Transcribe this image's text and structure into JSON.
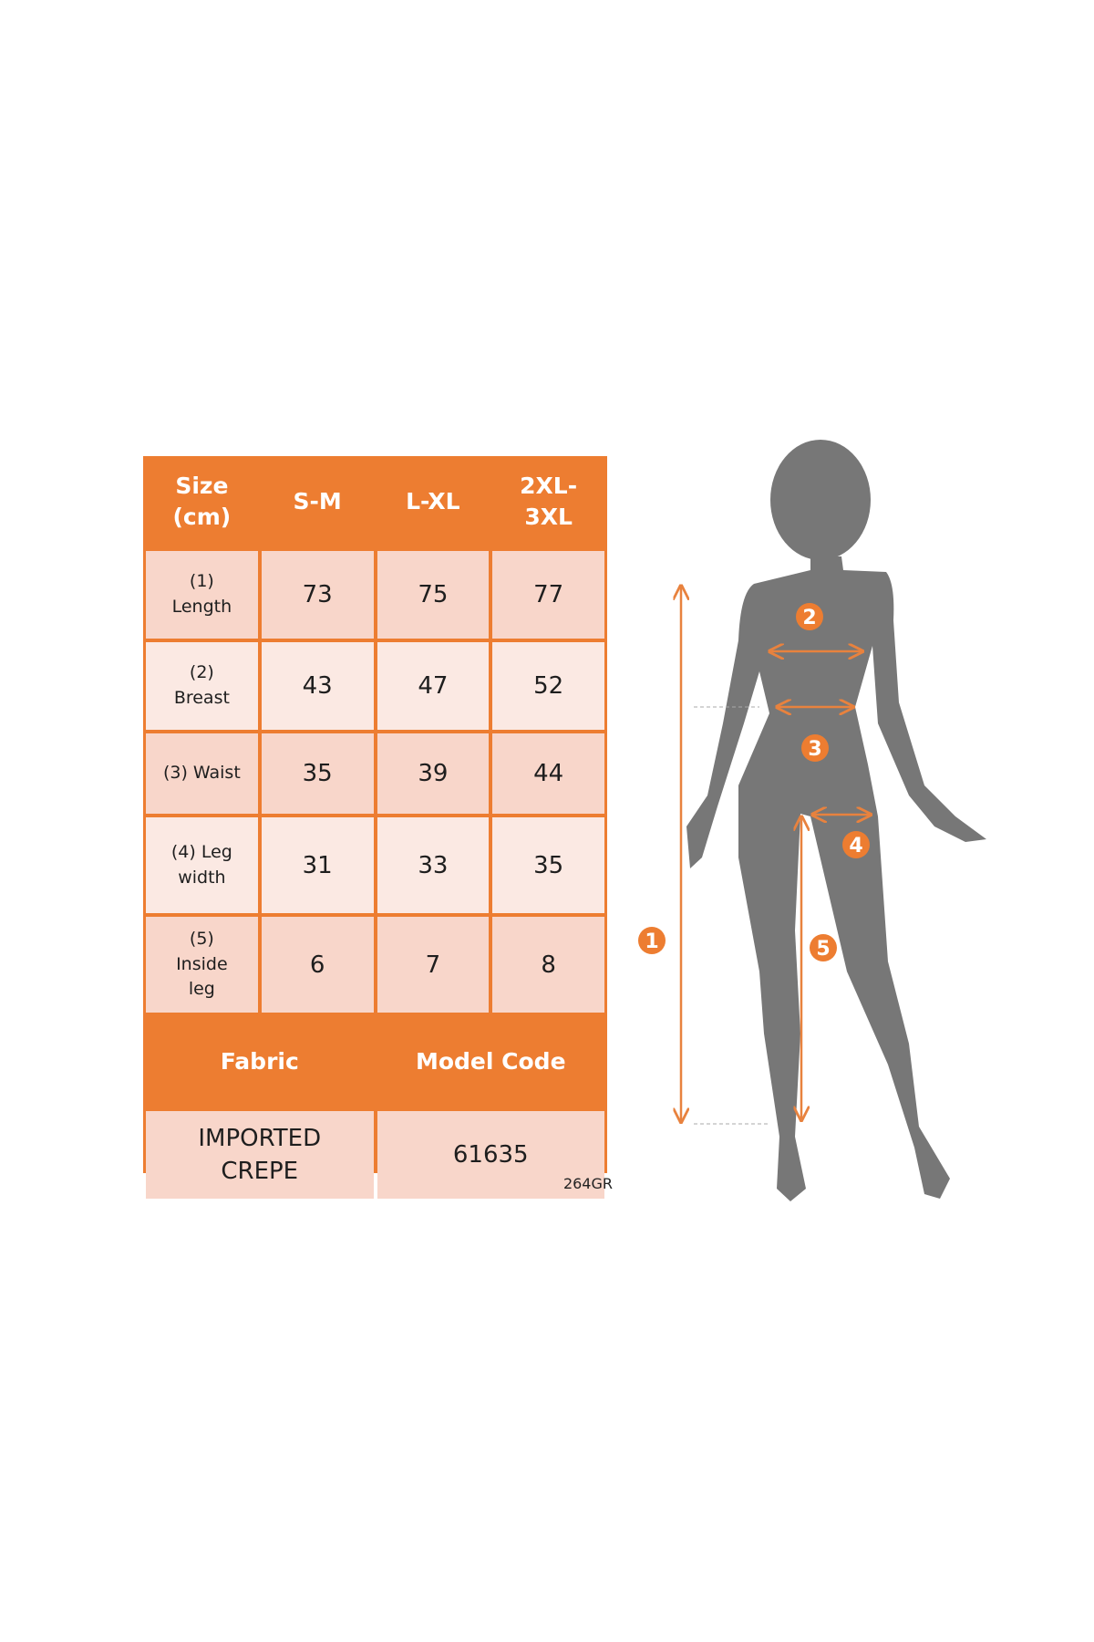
{
  "table": {
    "header": [
      "Size\n(cm)",
      "S-M",
      "L-XL",
      "2XL-\n3XL"
    ],
    "rows": [
      {
        "label": "(1)\nLength",
        "values": [
          "73",
          "75",
          "77"
        ]
      },
      {
        "label": "(2)\nBreast",
        "values": [
          "43",
          "47",
          "52"
        ]
      },
      {
        "label": "(3) Waist",
        "values": [
          "35",
          "39",
          "44"
        ]
      },
      {
        "label": "(4) Leg\nwidth",
        "values": [
          "31",
          "33",
          "35"
        ]
      },
      {
        "label": "(5)\nInside\nleg",
        "values": [
          "6",
          "7",
          "8"
        ]
      }
    ],
    "fabric_header": "Fabric",
    "model_code_header": "Model Code",
    "fabric_value": "IMPORTED\nCREPE",
    "model_code_value": "61635"
  },
  "product_code": "264GR",
  "figure": {
    "markers": [
      "1",
      "2",
      "3",
      "4",
      "5"
    ]
  },
  "colors": {
    "accent": "#ED7D31",
    "row_dark": "#F8D6CA",
    "row_light": "#FBE9E3",
    "silhouette": "#777777"
  }
}
